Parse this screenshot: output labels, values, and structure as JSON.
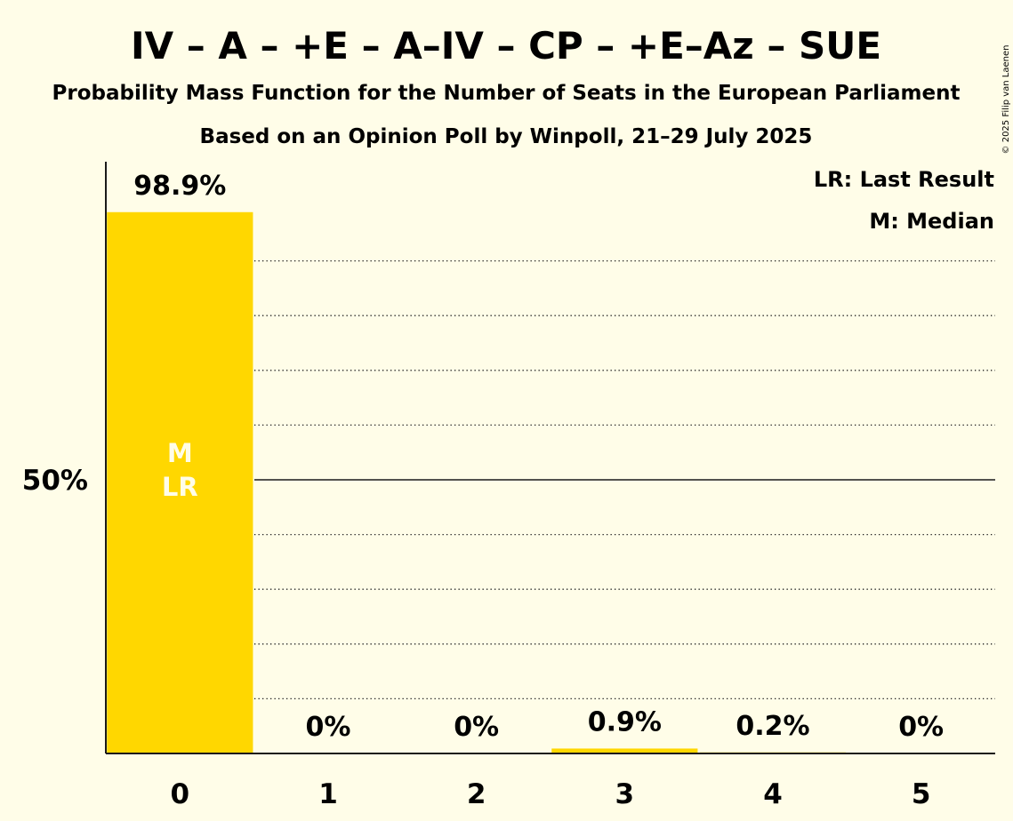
{
  "copyright": "© 2025 Filip van Laenen",
  "chart_data": {
    "type": "bar",
    "title": "IV – A – +E – A–IV – CP – +E–Az – SUE",
    "subtitle": "Probability Mass Function for the Number of Seats in the European Parliament",
    "subtitle2": "Based on an Opinion Poll by Winpoll, 21–29 July 2025",
    "categories": [
      "0",
      "1",
      "2",
      "3",
      "4",
      "5"
    ],
    "values": [
      98.9,
      0,
      0,
      0.9,
      0.2,
      0
    ],
    "value_labels": [
      "98.9%",
      "0%",
      "0%",
      "0.9%",
      "0.2%",
      "0%"
    ],
    "ylim": [
      0,
      108
    ],
    "y_tick_label": "50%",
    "y_tick_value": 50,
    "gridlines": [
      10,
      20,
      30,
      40,
      60,
      70,
      80,
      90
    ],
    "grid": true,
    "bar_color": "#FFD700",
    "median_index": 0,
    "last_result_index": 0,
    "median_marker": "M",
    "last_result_marker": "LR",
    "legend": [
      "LR: Last Result",
      "M: Median"
    ],
    "legend_position": "top-right"
  }
}
